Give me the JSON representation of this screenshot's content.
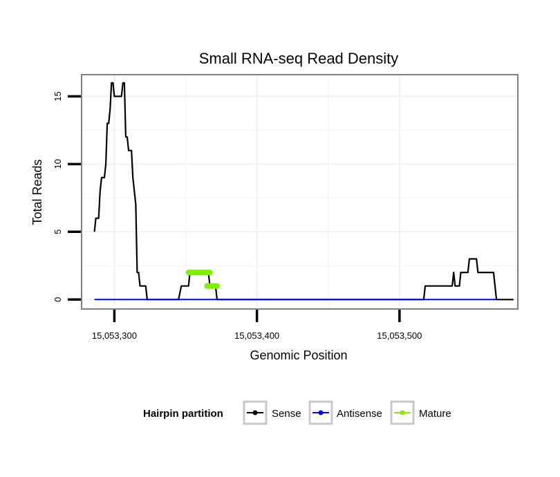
{
  "chart_data": {
    "type": "line",
    "title": "Small RNA-seq Read Density",
    "xlabel": "Genomic Position",
    "ylabel": "Total Reads",
    "xlim": [
      15053277,
      15053583
    ],
    "ylim": [
      -0.7,
      16.6
    ],
    "x_ticks": [
      15053300,
      15053400,
      15053500
    ],
    "x_tick_labels": [
      "15,053,300",
      "15,053,400",
      "15,053,500"
    ],
    "y_ticks": [
      0,
      5,
      10,
      15
    ],
    "y_tick_labels": [
      "0",
      "5",
      "10",
      "15"
    ],
    "grid": true,
    "legend": {
      "title": "Hairpin partition",
      "position": "bottom",
      "entries": [
        "Sense",
        "Antisense",
        "Mature"
      ]
    },
    "series": [
      {
        "name": "Sense",
        "color": "#000000",
        "width": 2.2,
        "points": [
          [
            15053286,
            5
          ],
          [
            15053287,
            6
          ],
          [
            15053289,
            6
          ],
          [
            15053290,
            8
          ],
          [
            15053291,
            9
          ],
          [
            15053293,
            9
          ],
          [
            15053294,
            10
          ],
          [
            15053295,
            13
          ],
          [
            15053296,
            13
          ],
          [
            15053297,
            14
          ],
          [
            15053298,
            16
          ],
          [
            15053299,
            16
          ],
          [
            15053300,
            15
          ],
          [
            15053305,
            15
          ],
          [
            15053306,
            16
          ],
          [
            15053307,
            16
          ],
          [
            15053308,
            12
          ],
          [
            15053309,
            12
          ],
          [
            15053310,
            11
          ],
          [
            15053312,
            11
          ],
          [
            15053313,
            9
          ],
          [
            15053315,
            7
          ],
          [
            15053316,
            2
          ],
          [
            15053317,
            2
          ],
          [
            15053318,
            1
          ],
          [
            15053322,
            1
          ],
          [
            15053323,
            0
          ],
          [
            15053345,
            0
          ],
          [
            15053347,
            1
          ],
          [
            15053352,
            1
          ],
          [
            15053353,
            2
          ],
          [
            15053366,
            2
          ],
          [
            15053367,
            1
          ],
          [
            15053371,
            1
          ],
          [
            15053372,
            0
          ],
          [
            15053517,
            0
          ],
          [
            15053518,
            1
          ],
          [
            15053537,
            1
          ],
          [
            15053538,
            2
          ],
          [
            15053539,
            1
          ],
          [
            15053542,
            1
          ],
          [
            15053543,
            2
          ],
          [
            15053548,
            2
          ],
          [
            15053549,
            3
          ],
          [
            15053554,
            3
          ],
          [
            15053555,
            2
          ],
          [
            15053566,
            2
          ],
          [
            15053567,
            1
          ],
          [
            15053568,
            0
          ],
          [
            15053580,
            0
          ]
        ]
      },
      {
        "name": "Antisense",
        "color": "#0000ff",
        "width": 2,
        "points": [
          [
            15053286,
            0
          ],
          [
            15053568,
            0
          ]
        ]
      },
      {
        "name": "Mature",
        "color": "#80ee00",
        "width": 8,
        "segments": [
          [
            [
              15053352,
              2
            ],
            [
              15053367,
              2
            ]
          ],
          [
            [
              15053365,
              1
            ],
            [
              15053372,
              1
            ]
          ]
        ]
      }
    ]
  }
}
